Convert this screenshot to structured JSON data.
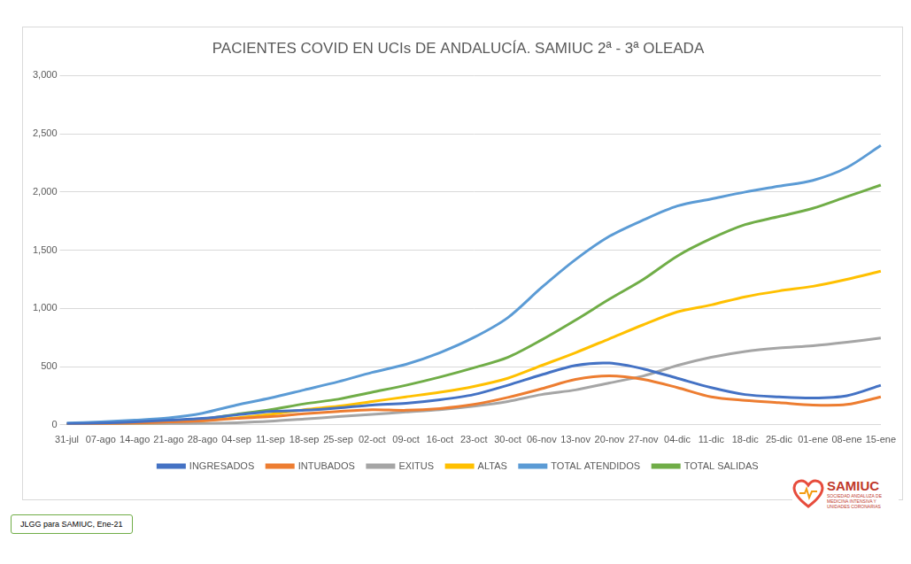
{
  "chart_data": {
    "type": "line",
    "title": "PACIENTES COVID EN UCIs DE ANDALUCÍA. SAMIUC 2ª - 3ª OLEADA",
    "categories": [
      "31-jul",
      "07-ago",
      "14-ago",
      "21-ago",
      "28-ago",
      "04-sep",
      "11-sep",
      "18-sep",
      "25-sep",
      "02-oct",
      "09-oct",
      "16-oct",
      "23-oct",
      "30-oct",
      "06-nov",
      "13-nov",
      "20-nov",
      "27-nov",
      "04-dic",
      "11-dic",
      "18-dic",
      "25-dic",
      "01-ene",
      "08-ene",
      "15-ene"
    ],
    "series": [
      {
        "name": "INGRESADOS",
        "color": "#4472c4",
        "values": [
          10,
          15,
          25,
          40,
          55,
          85,
          115,
          125,
          145,
          170,
          185,
          215,
          260,
          340,
          430,
          510,
          530,
          480,
          400,
          320,
          260,
          240,
          230,
          250,
          340
        ]
      },
      {
        "name": "INTUBADOS",
        "color": "#ed7d31",
        "values": [
          5,
          10,
          15,
          25,
          35,
          55,
          70,
          95,
          115,
          130,
          125,
          140,
          175,
          235,
          310,
          390,
          420,
          390,
          320,
          240,
          210,
          190,
          170,
          175,
          240
        ]
      },
      {
        "name": "EXITUS",
        "color": "#a5a5a5",
        "values": [
          0,
          2,
          5,
          8,
          12,
          18,
          30,
          50,
          70,
          90,
          110,
          130,
          160,
          200,
          260,
          300,
          360,
          420,
          510,
          580,
          630,
          660,
          680,
          710,
          745
        ]
      },
      {
        "name": "ALTAS",
        "color": "#ffc000",
        "values": [
          0,
          3,
          8,
          15,
          35,
          60,
          90,
          130,
          160,
          200,
          240,
          280,
          330,
          400,
          510,
          620,
          740,
          860,
          970,
          1030,
          1100,
          1150,
          1190,
          1250,
          1320
        ]
      },
      {
        "name": "TOTAL ATENDIDOS",
        "color": "#5b9bd5",
        "values": [
          15,
          25,
          40,
          60,
          100,
          170,
          230,
          300,
          370,
          450,
          520,
          620,
          750,
          920,
          1180,
          1420,
          1620,
          1760,
          1880,
          1940,
          2000,
          2050,
          2100,
          2210,
          2400
        ]
      },
      {
        "name": "TOTAL SALIDAS",
        "color": "#70ad47",
        "values": [
          5,
          10,
          15,
          25,
          50,
          90,
          130,
          180,
          220,
          280,
          340,
          410,
          490,
          580,
          730,
          900,
          1080,
          1250,
          1450,
          1600,
          1720,
          1790,
          1860,
          1960,
          2060
        ]
      }
    ],
    "ylim": [
      0,
      3000
    ],
    "yticks": [
      0,
      500,
      1000,
      1500,
      2000,
      2500,
      3000
    ],
    "grid": true,
    "legend": "bottom",
    "annotations": [
      "JLGG para SAMIUC, Ene-21",
      "SAMIUC",
      "SOCIEDAD ANDALUZA DE MEDICINA INTENSIVA Y UNIDADES CORONARIAS"
    ]
  }
}
